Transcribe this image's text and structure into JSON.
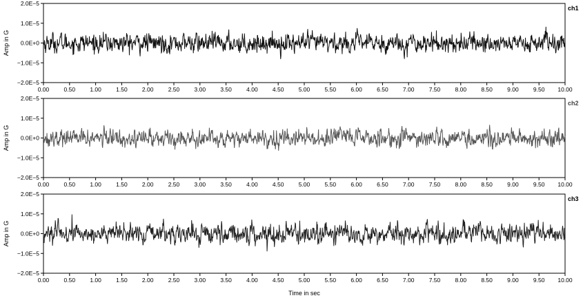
{
  "chart_data": {
    "type": "line",
    "xlabel": "Time in sec",
    "ylabel": "Amp in G",
    "xlim": [
      0,
      10
    ],
    "ylim": [
      -2e-05,
      2e-05
    ],
    "x_tick_labels": [
      "0.00",
      "0.50",
      "1.00",
      "1.50",
      "2.00",
      "2.50",
      "3.00",
      "3.50",
      "4.00",
      "4.50",
      "5.00",
      "5.50",
      "6.00",
      "6.50",
      "7.00",
      "7.50",
      "8.00",
      "8.50",
      "9.00",
      "9.50",
      "10.00"
    ],
    "y_tick_labels": [
      "2.0E−5",
      "1.0E−5",
      "0.0E+0",
      "−1.0E−5",
      "−2.0E−5"
    ],
    "y_tick_values": [
      2e-05,
      1e-05,
      0,
      -1e-05,
      -2e-05
    ],
    "grid": false,
    "panels": [
      {
        "name": "ch1",
        "color": "#111111",
        "peak_abs": 1.4e-05,
        "std_est": 4e-06
      },
      {
        "name": "ch2",
        "color": "#555555",
        "peak_abs": 1.2e-05,
        "std_est": 3.5e-06
      },
      {
        "name": "ch3",
        "color": "#222222",
        "peak_abs": 1.3e-05,
        "std_est": 4e-06
      }
    ]
  }
}
